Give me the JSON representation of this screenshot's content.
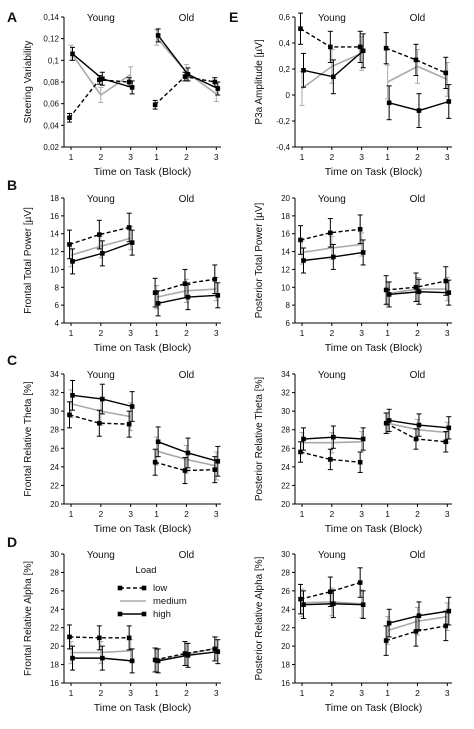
{
  "chart_data": [
    {
      "type": "line",
      "panel_letter": "A",
      "ylabel": "Steering Variability",
      "xlabel": "Time on Task (Block)",
      "ylim": [
        0.02,
        0.14
      ],
      "yticks": [
        "0,02",
        "0,04",
        "0,06",
        "0,08",
        "0,1",
        "0,12",
        "0,14"
      ],
      "group_labels": [
        "Young",
        "Old"
      ],
      "x_ticks": [
        "1",
        "2",
        "3"
      ],
      "series": [
        {
          "name": "low",
          "style": "dashed",
          "color": "#000000",
          "young": [
            0.047,
            0.082,
            0.08
          ],
          "old": [
            0.059,
            0.085,
            0.08
          ],
          "err": 0.004
        },
        {
          "name": "medium",
          "style": "solid",
          "color": "#aaaaaa",
          "young": [
            0.107,
            0.068,
            0.087
          ],
          "old": [
            0.121,
            0.089,
            0.069
          ],
          "err": 0.007
        },
        {
          "name": "high",
          "style": "solid",
          "color": "#000000",
          "young": [
            0.106,
            0.083,
            0.075
          ],
          "old": [
            0.123,
            0.087,
            0.074
          ],
          "err": 0.006
        }
      ]
    },
    {
      "type": "line",
      "panel_letter": "E",
      "ylabel": "P3a Amplitude [µV]",
      "xlabel": "Time on Task (Block)",
      "ylim": [
        -0.4,
        0.6
      ],
      "yticks": [
        "-0,4",
        "-0,2",
        "0",
        "0,2",
        "0,4",
        "0,6"
      ],
      "group_labels": [
        "Young",
        "Old"
      ],
      "x_ticks": [
        "1",
        "2",
        "3"
      ],
      "series": [
        {
          "name": "low",
          "style": "dashed",
          "color": "#000000",
          "young": [
            0.51,
            0.37,
            0.37
          ],
          "old": [
            0.36,
            0.27,
            0.17
          ],
          "err": 0.12
        },
        {
          "name": "medium",
          "style": "solid",
          "color": "#aaaaaa",
          "young": [
            0.05,
            0.22,
            0.32
          ],
          "old": [
            0.1,
            0.22,
            0.12
          ],
          "err": 0.13
        },
        {
          "name": "high",
          "style": "solid",
          "color": "#000000",
          "young": [
            0.19,
            0.14,
            0.34
          ],
          "old": [
            -0.06,
            -0.12,
            -0.05
          ],
          "err": 0.13
        }
      ]
    },
    {
      "type": "line",
      "panel_letter": "B",
      "ylabel": "Frontal Total Power [µV]",
      "xlabel": "Time on Task (Block)",
      "ylim": [
        4,
        18
      ],
      "yticks": [
        "4",
        "6",
        "8",
        "10",
        "12",
        "14",
        "16",
        "18"
      ],
      "group_labels": [
        "Young",
        "Old"
      ],
      "x_ticks": [
        "1",
        "2",
        "3"
      ],
      "series": [
        {
          "name": "low",
          "style": "dashed",
          "color": "#000000",
          "young": [
            12.8,
            13.9,
            14.7
          ],
          "old": [
            7.4,
            8.4,
            8.9
          ],
          "err": 1.6
        },
        {
          "name": "medium",
          "style": "solid",
          "color": "#aaaaaa",
          "young": [
            11.6,
            12.6,
            13.5
          ],
          "old": [
            6.9,
            7.6,
            7.8
          ],
          "err": 1.3
        },
        {
          "name": "high",
          "style": "solid",
          "color": "#000000",
          "young": [
            10.9,
            11.8,
            13.0
          ],
          "old": [
            6.2,
            6.9,
            7.1
          ],
          "err": 1.4
        }
      ]
    },
    {
      "type": "line",
      "panel_letter": "",
      "ylabel": "Posterior Total Power [µV]",
      "xlabel": "Time on Task (Block)",
      "ylim": [
        6,
        20
      ],
      "yticks": [
        "6",
        "8",
        "10",
        "12",
        "14",
        "16",
        "18",
        "20"
      ],
      "group_labels": [
        "Young",
        "Old"
      ],
      "x_ticks": [
        "1",
        "2",
        "3"
      ],
      "series": [
        {
          "name": "low",
          "style": "dashed",
          "color": "#000000",
          "young": [
            15.3,
            16.1,
            16.5
          ],
          "old": [
            9.7,
            10.0,
            10.7
          ],
          "err": 1.6
        },
        {
          "name": "medium",
          "style": "solid",
          "color": "#aaaaaa",
          "young": [
            13.9,
            14.4,
            14.8
          ],
          "old": [
            9.3,
            9.8,
            9.8
          ],
          "err": 1.3
        },
        {
          "name": "high",
          "style": "solid",
          "color": "#000000",
          "young": [
            13.0,
            13.4,
            13.9
          ],
          "old": [
            9.2,
            9.5,
            9.4
          ],
          "err": 1.4
        }
      ]
    },
    {
      "type": "line",
      "panel_letter": "C",
      "ylabel": "Frontal Relative Theta [%]",
      "xlabel": "Time on Task (Block)",
      "ylim": [
        20,
        34
      ],
      "yticks": [
        "20",
        "22",
        "24",
        "26",
        "28",
        "30",
        "32",
        "34"
      ],
      "group_labels": [
        "Young",
        "Old"
      ],
      "x_ticks": [
        "1",
        "2",
        "3"
      ],
      "series": [
        {
          "name": "low",
          "style": "dashed",
          "color": "#000000",
          "young": [
            29.6,
            28.7,
            28.6
          ],
          "old": [
            24.5,
            23.6,
            23.7
          ],
          "err": 1.4
        },
        {
          "name": "medium",
          "style": "solid",
          "color": "#aaaaaa",
          "young": [
            30.8,
            30.0,
            29.4
          ],
          "old": [
            25.7,
            24.8,
            24.1
          ],
          "err": 1.5
        },
        {
          "name": "high",
          "style": "solid",
          "color": "#000000",
          "young": [
            31.7,
            31.3,
            30.5
          ],
          "old": [
            26.7,
            25.5,
            24.6
          ],
          "err": 1.6
        }
      ]
    },
    {
      "type": "line",
      "panel_letter": "",
      "ylabel": "Posterior Relative Theta [%]",
      "xlabel": "Time on Task (Block)",
      "ylim": [
        20,
        34
      ],
      "yticks": [
        "20",
        "22",
        "24",
        "26",
        "28",
        "30",
        "32",
        "34"
      ],
      "group_labels": [
        "Young",
        "Old"
      ],
      "x_ticks": [
        "1",
        "2",
        "3"
      ],
      "series": [
        {
          "name": "low",
          "style": "dashed",
          "color": "#000000",
          "young": [
            25.6,
            24.8,
            24.5
          ],
          "old": [
            28.7,
            27.0,
            26.7
          ],
          "err": 1.1
        },
        {
          "name": "medium",
          "style": "solid",
          "color": "#aaaaaa",
          "young": [
            26.6,
            26.6,
            26.7
          ],
          "old": [
            28.7,
            28.0,
            27.7
          ],
          "err": 1.1
        },
        {
          "name": "high",
          "style": "solid",
          "color": "#000000",
          "young": [
            27.0,
            27.2,
            27.0
          ],
          "old": [
            29.0,
            28.5,
            28.2
          ],
          "err": 1.2
        }
      ]
    },
    {
      "type": "line",
      "panel_letter": "D",
      "ylabel": "Frontal Relative Alpha [%]",
      "xlabel": "Time on Task (Block)",
      "ylim": [
        16,
        30
      ],
      "yticks": [
        "16",
        "18",
        "20",
        "22",
        "24",
        "26",
        "28",
        "30"
      ],
      "group_labels": [
        "Young",
        "Old"
      ],
      "x_ticks": [
        "1",
        "2",
        "3"
      ],
      "series": [
        {
          "name": "low",
          "style": "dashed",
          "color": "#000000",
          "young": [
            21.0,
            20.9,
            20.9
          ],
          "old": [
            18.5,
            19.2,
            19.7
          ],
          "err": 1.3
        },
        {
          "name": "medium",
          "style": "solid",
          "color": "#aaaaaa",
          "young": [
            19.3,
            19.3,
            19.5
          ],
          "old": [
            18.4,
            19.1,
            19.8
          ],
          "err": 1.2
        },
        {
          "name": "high",
          "style": "solid",
          "color": "#000000",
          "young": [
            18.7,
            18.7,
            18.4
          ],
          "old": [
            18.4,
            19.0,
            19.4
          ],
          "err": 1.3
        }
      ],
      "legend": {
        "title": "Load",
        "entries": [
          "low",
          "medium",
          "high"
        ]
      }
    },
    {
      "type": "line",
      "panel_letter": "",
      "ylabel": "Posterior Relative Alpha [%]",
      "xlabel": "Time on Task (Block)",
      "ylim": [
        16,
        30
      ],
      "yticks": [
        "16",
        "18",
        "20",
        "22",
        "24",
        "26",
        "28",
        "30"
      ],
      "group_labels": [
        "Young",
        "Old"
      ],
      "x_ticks": [
        "1",
        "2",
        "3"
      ],
      "series": [
        {
          "name": "low",
          "style": "dashed",
          "color": "#000000",
          "young": [
            25.1,
            25.9,
            26.9
          ],
          "old": [
            20.6,
            21.6,
            22.2
          ],
          "err": 1.6
        },
        {
          "name": "medium",
          "style": "solid",
          "color": "#aaaaaa",
          "young": [
            24.7,
            24.8,
            24.6
          ],
          "old": [
            21.7,
            22.7,
            23.2
          ],
          "err": 1.5
        },
        {
          "name": "high",
          "style": "solid",
          "color": "#000000",
          "young": [
            24.5,
            24.6,
            24.5
          ],
          "old": [
            22.5,
            23.3,
            23.8
          ],
          "err": 1.5
        }
      ]
    }
  ]
}
